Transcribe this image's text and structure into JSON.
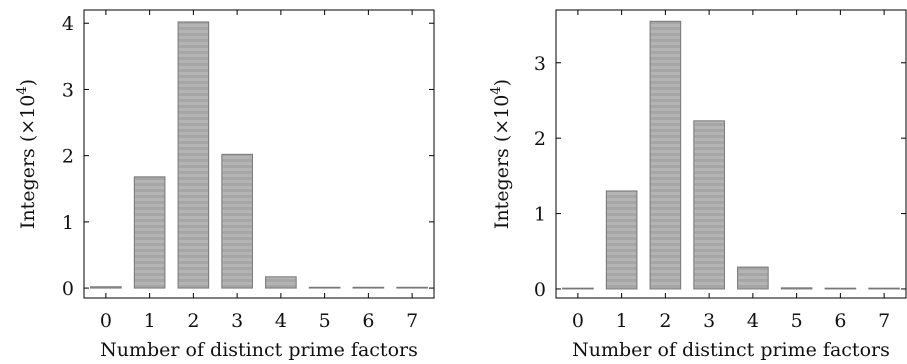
{
  "chart_data": [
    {
      "type": "bar",
      "xlabel": "Number of distinct prime factors",
      "ylabel_main": "Integers (×10",
      "ylabel_exp": "4",
      "ylabel_close": ")",
      "categories": [
        "0",
        "1",
        "2",
        "3",
        "4",
        "5",
        "6",
        "7"
      ],
      "values": [
        0.02,
        1.68,
        4.02,
        2.02,
        0.17,
        0.005,
        0.002,
        0.001
      ],
      "yticks": [
        0,
        1,
        2,
        3,
        4
      ],
      "ylim": [
        -0.15,
        4.2
      ],
      "grid": false,
      "bar_color": "#b4b4b4",
      "bar_stripe_color": "#a4a4a4"
    },
    {
      "type": "bar",
      "xlabel": "Number of distinct prime factors",
      "ylabel_main": "Integers (×10",
      "ylabel_exp": "4",
      "ylabel_close": ")",
      "categories": [
        "0",
        "1",
        "2",
        "3",
        "4",
        "5",
        "6",
        "7"
      ],
      "values": [
        0.01,
        1.3,
        3.55,
        2.23,
        0.29,
        0.015,
        0.003,
        0.001
      ],
      "yticks": [
        0,
        1,
        2,
        3
      ],
      "ylim": [
        -0.12,
        3.7
      ],
      "grid": false,
      "bar_color": "#b4b4b4",
      "bar_stripe_color": "#a4a4a4"
    }
  ]
}
